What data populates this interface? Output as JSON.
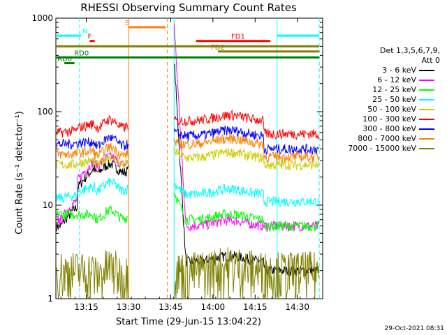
{
  "chart_data": {
    "type": "line",
    "title": "RHESSI Observing Summary Count Rates",
    "xlabel": "Start Time (29-Jun-15 13:04:22)",
    "ylabel": "Count Rate (s⁻¹ detector⁻¹)",
    "y_scale": "log",
    "ylim": [
      1,
      1000
    ],
    "xlim_minutes": [
      13.07,
      14.65
    ],
    "x_tick_labels": [
      "13:15",
      "13:30",
      "13:45",
      "14:00",
      "14:15",
      "14:30"
    ],
    "x_tick_hours": [
      13.25,
      13.5,
      13.75,
      14.0,
      14.25,
      14.5
    ],
    "y_tick_labels": [
      "1",
      "10",
      "100",
      "1000"
    ],
    "y_tick_values": [
      1,
      10,
      100,
      1000
    ],
    "legend_header": [
      "Det 1,3,5,6,7,9,",
      "Att 0"
    ],
    "series": [
      {
        "name": "3 - 6 keV",
        "color": "#000000",
        "before": 6,
        "rise": 25,
        "peak": 380,
        "decay": 2.5,
        "late": 2
      },
      {
        "name": "6 - 12 keV",
        "color": "#ff00ff",
        "before": 7,
        "rise": 30,
        "peak": 900,
        "decay": 6,
        "late": 6
      },
      {
        "name": "12 - 25 keV",
        "color": "#00ff00",
        "before": 8,
        "rise": 8,
        "peak": 14,
        "decay": 7,
        "late": 6
      },
      {
        "name": "25 - 50 keV",
        "color": "#00ffff",
        "before": 12,
        "rise": 16,
        "peak": 17,
        "decay": 13,
        "late": 11
      },
      {
        "name": "50 - 100 keV",
        "color": "#cccc00",
        "before": 27,
        "rise": 30,
        "peak": 38,
        "decay": 32,
        "late": 27
      },
      {
        "name": "100 - 300 keV",
        "color": "#ff0000",
        "before": 60,
        "rise": 75,
        "peak": 80,
        "decay": 80,
        "late": 58
      },
      {
        "name": "300 - 800 keV",
        "color": "#0000ff",
        "before": 45,
        "rise": 48,
        "peak": 60,
        "decay": 55,
        "late": 40
      },
      {
        "name": "800 - 7000 keV",
        "color": "#ff8000",
        "before": 35,
        "rise": 38,
        "peak": 48,
        "decay": 45,
        "late": 33
      },
      {
        "name": "7000 - 15000 keV",
        "color": "#808000",
        "before": 2,
        "rise": 2,
        "peak": 2,
        "decay": 2,
        "late": 2
      }
    ],
    "flag_bars": [
      {
        "label": "N",
        "color": "#00ffff",
        "x0": 13.07,
        "x1": 13.22,
        "y": 650,
        "label_at": 13.22
      },
      {
        "label": "",
        "color": "#00ffff",
        "x0": 14.38,
        "x1": 14.63,
        "y": 650,
        "label_at": 14.38
      },
      {
        "label": "F",
        "color": "#ff0000",
        "x0": 13.27,
        "x1": 13.3,
        "y": 570,
        "label_at": 13.25
      },
      {
        "label": "S",
        "color": "#ff8000",
        "x0": 13.5,
        "x1": 13.72,
        "y": 800,
        "label_at": 13.47
      },
      {
        "label": "FD1",
        "color": "#ff0000",
        "x0": 13.9,
        "x1": 14.34,
        "y": 570,
        "label_at": 14.1
      },
      {
        "label": "",
        "color": "#808000",
        "x0": 13.07,
        "x1": 14.63,
        "y": 500,
        "label_at": 13.07
      },
      {
        "label": "FD2",
        "color": "#808000",
        "x0": 14.03,
        "x1": 14.63,
        "y": 440,
        "label_at": 13.98
      },
      {
        "label": "RD0",
        "color": "#008000",
        "x0": 13.07,
        "x1": 14.63,
        "y": 380,
        "label_at": 13.17
      },
      {
        "label": "RD6",
        "color": "#008000",
        "x0": 13.12,
        "x1": 13.18,
        "y": 330,
        "label_at": 13.07
      }
    ],
    "vertical_lines": [
      {
        "x": 13.21,
        "color": "#00ffff",
        "dash": true
      },
      {
        "x": 13.5,
        "color": "#ff8000",
        "dash": false
      },
      {
        "x": 13.73,
        "color": "#ff8000",
        "dash": true
      },
      {
        "x": 13.77,
        "color": "#00ffff",
        "dash": false
      },
      {
        "x": 14.38,
        "color": "#00ffff",
        "dash": false
      },
      {
        "x": 14.63,
        "color": "#00ffff",
        "dash": true
      }
    ],
    "grid": false,
    "legend_placement": "right"
  },
  "footer_timestamp": "29-Oct-2021 08:31"
}
